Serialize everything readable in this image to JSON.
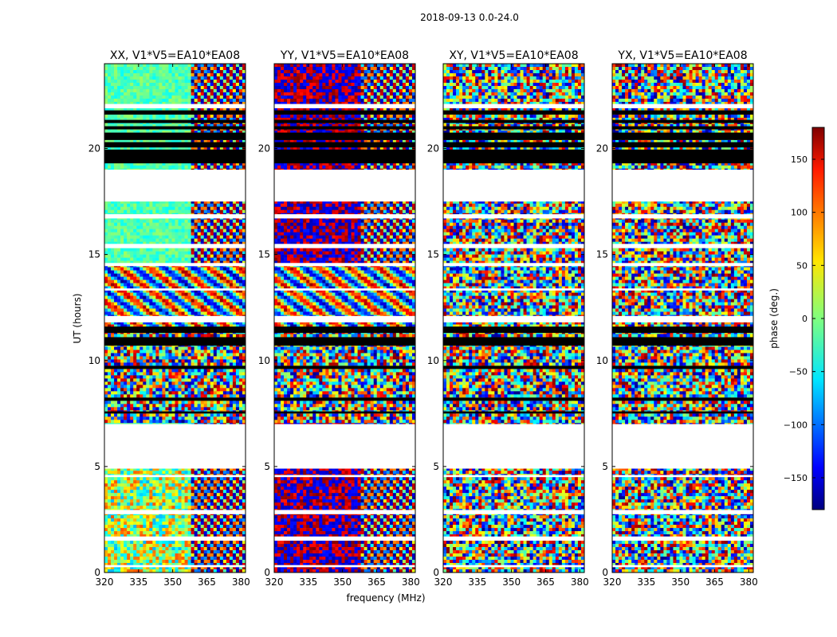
{
  "figure": {
    "suptitle": "2018-09-13 0.0-24.0",
    "xlabel": "frequency (MHz)",
    "ylabel": "UT (hours)",
    "colorbar_label": "phase (deg.)",
    "colorbar_ticks": [
      150,
      100,
      50,
      0,
      -50,
      -100,
      -150
    ],
    "colorbar_tick_labels": [
      "150",
      "100",
      "50",
      "0",
      "−50",
      "−100",
      "−150"
    ],
    "colorbar_range": [
      -180,
      180
    ],
    "colormap": "jet"
  },
  "chart_data": [
    {
      "type": "heatmap",
      "title": "XX, V1*V5=EA10*EA08",
      "xlim": [
        320,
        382
      ],
      "ylim": [
        0,
        24
      ],
      "x_ticks": [
        320,
        335,
        350,
        365,
        380
      ],
      "y_ticks": [
        0,
        5,
        10,
        15,
        20
      ],
      "pattern": "smooth-phase",
      "bands": [
        {
          "y_start": 21.9,
          "y_end": 24.0,
          "mean_phase": -20
        },
        {
          "y_start": 17.5,
          "y_end": 14.5,
          "mean_phase": -20
        },
        {
          "y_start": 14.5,
          "y_end": 11.5,
          "mean_phase": "wrapped"
        },
        {
          "y_start": 11.5,
          "y_end": 7.0,
          "mean_phase": "noise"
        },
        {
          "y_start": 4.9,
          "y_end": 0.0,
          "mean_phase": "wrapped"
        }
      ]
    },
    {
      "type": "heatmap",
      "title": "YY, V1*V5=EA10*EA08",
      "xlim": [
        320,
        382
      ],
      "ylim": [
        0,
        24
      ],
      "x_ticks": [
        320,
        335,
        350,
        365,
        380
      ],
      "y_ticks": [
        0,
        5,
        10,
        15,
        20
      ],
      "pattern": "bimodal-phase",
      "bands": [
        {
          "y_start": 21.9,
          "y_end": 24.0,
          "mean_phase": 180
        },
        {
          "y_start": 17.5,
          "y_end": 14.5,
          "mean_phase": 180
        },
        {
          "y_start": 14.5,
          "y_end": 11.5,
          "mean_phase": "wrapped"
        },
        {
          "y_start": 11.5,
          "y_end": 7.0,
          "mean_phase": "noise"
        },
        {
          "y_start": 4.9,
          "y_end": 0.0,
          "mean_phase": "wrapped"
        }
      ]
    },
    {
      "type": "heatmap",
      "title": "XY, V1*V5=EA10*EA08",
      "xlim": [
        320,
        382
      ],
      "ylim": [
        0,
        24
      ],
      "x_ticks": [
        320,
        335,
        350,
        365,
        380
      ],
      "y_ticks": [
        0,
        5,
        10,
        15,
        20
      ],
      "pattern": "noise",
      "bands": [
        {
          "y_start": 21.9,
          "y_end": 24.0,
          "mean_phase": "noise"
        },
        {
          "y_start": 17.5,
          "y_end": 14.5,
          "mean_phase": "noise"
        },
        {
          "y_start": 14.5,
          "y_end": 11.5,
          "mean_phase": "wrapped"
        },
        {
          "y_start": 11.5,
          "y_end": 7.0,
          "mean_phase": "noise"
        },
        {
          "y_start": 4.9,
          "y_end": 0.0,
          "mean_phase": "wrapped"
        }
      ]
    },
    {
      "type": "heatmap",
      "title": "YX, V1*V5=EA10*EA08",
      "xlim": [
        320,
        382
      ],
      "ylim": [
        0,
        24
      ],
      "x_ticks": [
        320,
        335,
        350,
        365,
        380
      ],
      "y_ticks": [
        0,
        5,
        10,
        15,
        20
      ],
      "pattern": "noise",
      "bands": [
        {
          "y_start": 21.9,
          "y_end": 24.0,
          "mean_phase": "noise"
        },
        {
          "y_start": 17.5,
          "y_end": 14.5,
          "mean_phase": "noise"
        },
        {
          "y_start": 14.5,
          "y_end": 11.5,
          "mean_phase": "wrapped"
        },
        {
          "y_start": 11.5,
          "y_end": 7.0,
          "mean_phase": "noise"
        },
        {
          "y_start": 4.9,
          "y_end": 0.0,
          "mean_phase": "wrapped"
        }
      ]
    }
  ]
}
